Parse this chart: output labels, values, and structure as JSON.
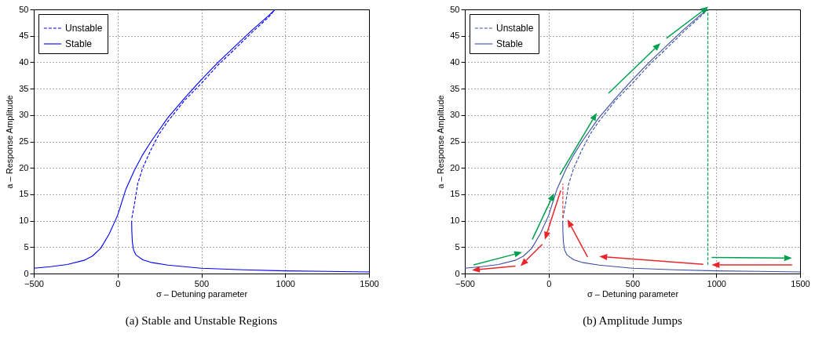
{
  "chart_data": [
    {
      "type": "line",
      "title": "(a) Stable and Unstable Regions",
      "xlabel": "σ – Detuning parameter",
      "ylabel": "a – Response Amplitude",
      "xlim": [
        -500,
        1500
      ],
      "ylim": [
        0,
        50
      ],
      "xticks": [
        -500,
        0,
        500,
        1000,
        1500
      ],
      "yticks": [
        0,
        5,
        10,
        15,
        20,
        25,
        30,
        35,
        40,
        45,
        50
      ],
      "grid": true,
      "legend": "top left",
      "series": [
        {
          "name": "Unstable",
          "color": "#0000ff",
          "line_style": "dashed",
          "x": [
            85,
            100,
            120,
            150,
            200,
            250,
            300,
            400,
            500,
            600,
            700,
            800,
            900,
            940
          ],
          "values": [
            10.5,
            13,
            17,
            20,
            23.5,
            26.5,
            28.8,
            32.8,
            36,
            39.5,
            42.5,
            45.6,
            48.5,
            50
          ]
        },
        {
          "name": "Stable",
          "color": "#0000ff",
          "line_style": "solid",
          "x": [
            -500,
            -400,
            -300,
            -200,
            -150,
            -100,
            -50,
            0,
            50,
            100,
            150,
            200,
            300,
            400,
            500,
            600,
            700,
            800,
            900,
            940
          ],
          "values": [
            1,
            1.3,
            1.7,
            2.5,
            3.3,
            4.8,
            7.5,
            11,
            16,
            19.5,
            22.5,
            25,
            29.5,
            33.2,
            36.7,
            40,
            43,
            46,
            48.8,
            50
          ]
        },
        {
          "color": "#0000ff",
          "line_style": "solid",
          "x": [
            84,
            85,
            88,
            95,
            110,
            150,
            200,
            300,
            500,
            750,
            1000,
            1250,
            1500
          ],
          "values": [
            10,
            8,
            6,
            4.5,
            3.5,
            2.6,
            2.1,
            1.6,
            1,
            0.7,
            0.5,
            0.4,
            0.3
          ]
        }
      ]
    },
    {
      "type": "line",
      "title": "(b) Amplitude Jumps",
      "xlabel": "σ – Detuning parameter",
      "ylabel": "a – Response Amplitude",
      "xlim": [
        -500,
        1500
      ],
      "ylim": [
        0,
        50
      ],
      "xticks": [
        -500,
        0,
        500,
        1000,
        1500
      ],
      "yticks": [
        0,
        5,
        10,
        15,
        20,
        25,
        30,
        35,
        40,
        45,
        50
      ],
      "grid": true,
      "legend": "top left",
      "series": [
        {
          "name": "Unstable",
          "color": "#3b4ea0",
          "line_style": "dashed",
          "x": [
            85,
            100,
            120,
            150,
            200,
            250,
            300,
            400,
            500,
            600,
            700,
            800,
            900,
            950
          ],
          "values": [
            10.5,
            13,
            17,
            20,
            23.5,
            26.5,
            28.8,
            32.8,
            36,
            39.5,
            42.5,
            45.6,
            48.5,
            50
          ]
        },
        {
          "name": "Stable",
          "color": "#3b4ea0",
          "line_style": "solid",
          "x": [
            -500,
            -400,
            -300,
            -200,
            -150,
            -100,
            -50,
            0,
            50,
            100,
            150,
            200,
            300,
            400,
            500,
            600,
            700,
            800,
            900,
            950
          ],
          "values": [
            1,
            1.3,
            1.7,
            2.5,
            3.3,
            4.8,
            7.5,
            11,
            16,
            19.5,
            22.5,
            25,
            29.5,
            33.2,
            36.7,
            40,
            43,
            46,
            48.8,
            50
          ]
        },
        {
          "color": "#3b4ea0",
          "line_style": "solid",
          "x": [
            84,
            85,
            88,
            95,
            110,
            150,
            200,
            300,
            500,
            750,
            1000,
            1250,
            1500
          ],
          "values": [
            10,
            8,
            6,
            4.5,
            3.5,
            2.6,
            2.1,
            1.6,
            1,
            0.7,
            0.5,
            0.4,
            0.3
          ]
        },
        {
          "color": "#00a050",
          "line_style": "dashed",
          "x": [
            950,
            950
          ],
          "values": [
            1.6,
            50
          ]
        },
        {
          "color": "#e8262a",
          "line_style": "dashed",
          "x": [
            85,
            85
          ],
          "values": [
            10.5,
            17
          ]
        }
      ]
    }
  ]
}
